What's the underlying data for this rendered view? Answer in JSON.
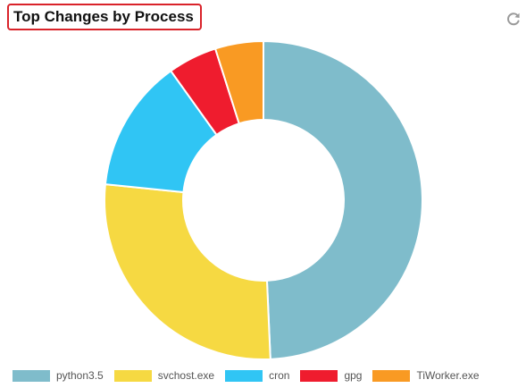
{
  "widget": {
    "title": "Top Changes by Process",
    "refresh_icon": "refresh-icon"
  },
  "colors": {
    "python3.5": "#7fbccb",
    "svchost.exe": "#f6d942",
    "cron": "#30c5f4",
    "gpg": "#ef1c2e",
    "TiWorker.exe": "#f99a23"
  },
  "chart_data": {
    "type": "pie",
    "variant": "donut",
    "title": "",
    "legend_position": "bottom",
    "categories": [
      "python3.5",
      "svchost.exe",
      "cron",
      "gpg",
      "TiWorker.exe"
    ],
    "values": [
      49.3,
      27.3,
      13.5,
      5.0,
      4.9
    ],
    "value_unit": "percent of total (estimated from slice angles)"
  },
  "legend": {
    "items": [
      {
        "label": "python3.5",
        "color": "#7fbccb"
      },
      {
        "label": "svchost.exe",
        "color": "#f6d942"
      },
      {
        "label": "cron",
        "color": "#30c5f4"
      },
      {
        "label": "gpg",
        "color": "#ef1c2e"
      },
      {
        "label": "TiWorker.exe",
        "color": "#f99a23"
      }
    ]
  }
}
